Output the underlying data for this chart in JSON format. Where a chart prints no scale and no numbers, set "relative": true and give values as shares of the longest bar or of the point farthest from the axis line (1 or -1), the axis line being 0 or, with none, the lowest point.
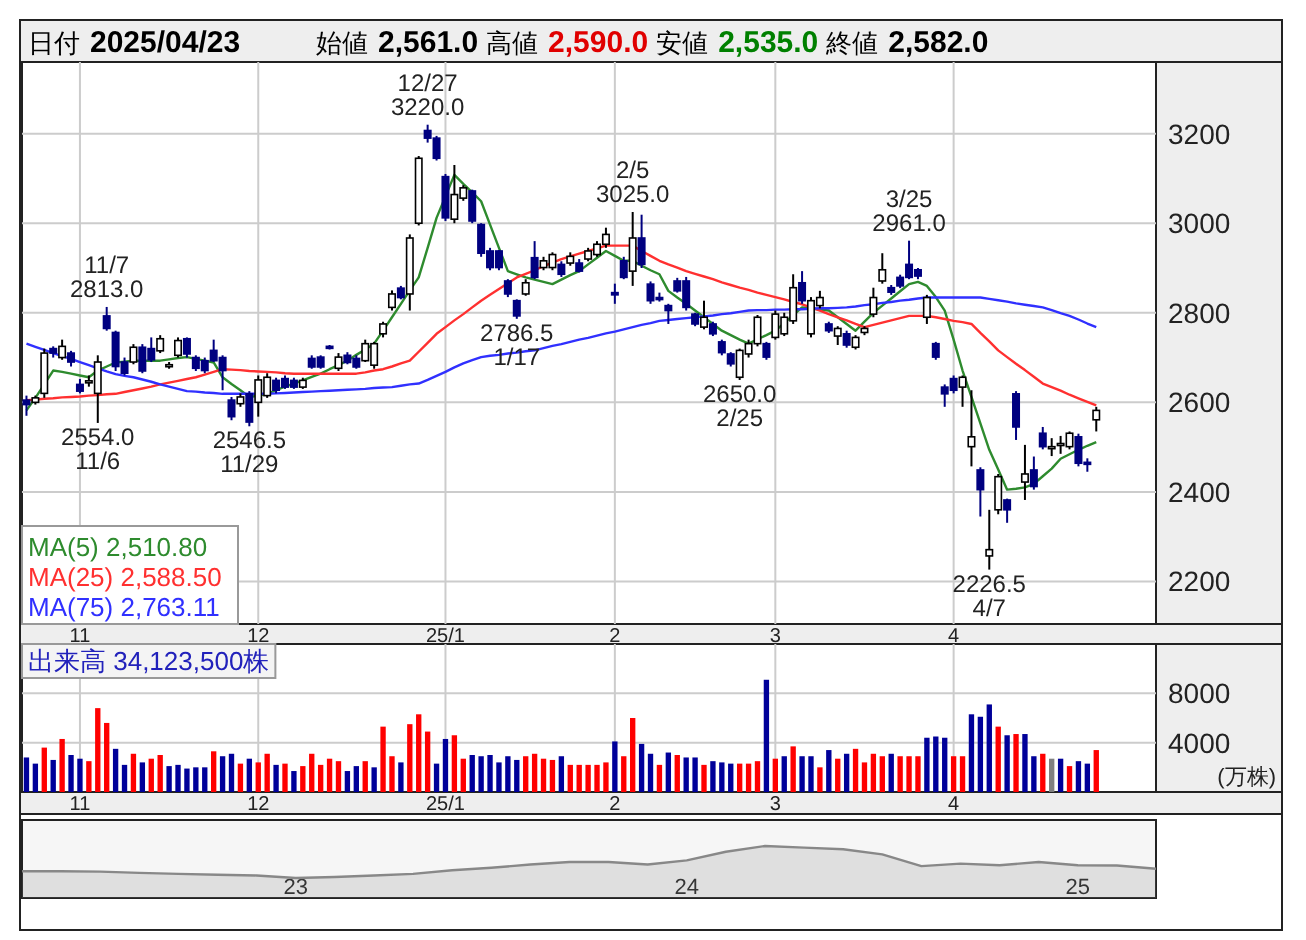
{
  "chart_data": [
    {
      "type": "candlestick",
      "categories": [
        null,
        null,
        null,
        null,
        null,
        null,
        "11",
        null,
        null,
        null,
        null,
        null,
        null,
        null,
        null,
        null,
        null,
        null,
        null,
        null,
        null,
        null,
        null,
        null,
        null,
        null,
        "12",
        null,
        null,
        null,
        null,
        null,
        null,
        null,
        null,
        null,
        null,
        null,
        null,
        null,
        null,
        null,
        null,
        null,
        null,
        null,
        null,
        "25/1",
        null,
        null,
        null,
        null,
        null,
        null,
        null,
        null,
        null,
        null,
        null,
        null,
        null,
        null,
        null,
        null,
        null,
        null,
        "2",
        null,
        null,
        null,
        null,
        null,
        null,
        null,
        null,
        null,
        null,
        null,
        null,
        null,
        null,
        null,
        null,
        null,
        "3",
        null,
        null,
        null,
        null,
        null,
        null,
        null,
        null,
        null,
        null,
        null,
        null,
        null,
        null,
        null,
        null,
        null,
        null,
        null,
        "4",
        null,
        null,
        null,
        null,
        null,
        null,
        null,
        null,
        null,
        null,
        null,
        null,
        null,
        null,
        null,
        null
      ],
      "ohlc": [
        [
          2605,
          2615,
          2570,
          2595
        ],
        [
          2600,
          2615,
          2595,
          2610
        ],
        [
          2620,
          2720,
          2610,
          2710
        ],
        [
          2720,
          2725,
          2700,
          2710
        ],
        [
          2700,
          2740,
          2695,
          2725
        ],
        [
          2710,
          2715,
          2680,
          2690
        ],
        [
          2640,
          2652,
          2620,
          2625
        ],
        [
          2645,
          2660,
          2635,
          2648
        ],
        [
          2620,
          2705,
          2554,
          2690
        ],
        [
          2793,
          2813,
          2760,
          2765
        ],
        [
          2756,
          2760,
          2670,
          2680
        ],
        [
          2690,
          2700,
          2660,
          2665
        ],
        [
          2690,
          2730,
          2685,
          2723
        ],
        [
          2723,
          2730,
          2665,
          2670
        ],
        [
          2720,
          2745,
          2690,
          2695
        ],
        [
          2715,
          2750,
          2710,
          2742
        ],
        [
          2682,
          2690,
          2675,
          2684
        ],
        [
          2705,
          2745,
          2700,
          2738
        ],
        [
          2742,
          2745,
          2700,
          2708
        ],
        [
          2700,
          2705,
          2670,
          2676
        ],
        [
          2693,
          2700,
          2665,
          2671
        ],
        [
          2716,
          2740,
          2690,
          2693
        ],
        [
          2700,
          2705,
          2627,
          2671
        ],
        [
          2605,
          2612,
          2560,
          2568
        ],
        [
          2597,
          2620,
          2590,
          2612
        ],
        [
          2619,
          2625,
          2546.5,
          2556
        ],
        [
          2600,
          2660,
          2568,
          2650
        ],
        [
          2615,
          2665,
          2610,
          2656
        ],
        [
          2649,
          2655,
          2620,
          2627
        ],
        [
          2653,
          2660,
          2630,
          2634
        ],
        [
          2649,
          2655,
          2630,
          2634
        ],
        [
          2634,
          2655,
          2630,
          2649
        ],
        [
          2698,
          2705,
          2675,
          2679
        ],
        [
          2701,
          2705,
          2675,
          2679
        ],
        [
          2725,
          2728,
          2718,
          2721
        ],
        [
          2676,
          2710,
          2670,
          2701
        ],
        [
          2705,
          2712,
          2685,
          2689
        ],
        [
          2698,
          2705,
          2675,
          2679
        ],
        [
          2693,
          2740,
          2690,
          2731
        ],
        [
          2683,
          2735,
          2675,
          2731
        ],
        [
          2753,
          2780,
          2745,
          2775
        ],
        [
          2812,
          2850,
          2805,
          2842
        ],
        [
          2855,
          2860,
          2830,
          2834
        ],
        [
          2842,
          2975,
          2805,
          2967
        ],
        [
          3000,
          3150,
          2995,
          3145
        ],
        [
          3207,
          3220,
          3180,
          3190
        ],
        [
          3190,
          3195,
          3140,
          3145
        ],
        [
          3104,
          3110,
          3005,
          3012
        ],
        [
          3009,
          3130,
          3000,
          3064
        ],
        [
          3056,
          3085,
          3050,
          3079
        ],
        [
          3072,
          3075,
          3000,
          3005
        ],
        [
          2997,
          3000,
          2925,
          2933
        ],
        [
          2938,
          2945,
          2895,
          2901
        ],
        [
          2938,
          2940,
          2895,
          2901
        ],
        [
          2871,
          2875,
          2835,
          2842
        ],
        [
          2827,
          2830,
          2786.5,
          2793
        ],
        [
          2842,
          2875,
          2838,
          2867
        ],
        [
          2923,
          2960,
          2875,
          2879
        ],
        [
          2901,
          2925,
          2895,
          2916
        ],
        [
          2901,
          2935,
          2895,
          2930
        ],
        [
          2908,
          2915,
          2880,
          2886
        ],
        [
          2911,
          2935,
          2905,
          2926
        ],
        [
          2911,
          2920,
          2890,
          2893
        ],
        [
          2920,
          2945,
          2915,
          2938
        ],
        [
          2930,
          2960,
          2925,
          2953
        ],
        [
          2953,
          2990,
          2945,
          2975
        ],
        [
          2845,
          2865,
          2820,
          2840
        ],
        [
          2916,
          2925,
          2875,
          2879
        ],
        [
          2893,
          3025,
          2860,
          2967
        ],
        [
          2967,
          3019,
          2900,
          2908
        ],
        [
          2864,
          2870,
          2820,
          2827
        ],
        [
          2834,
          2845,
          2825,
          2832
        ],
        [
          2816,
          2820,
          2775,
          2805
        ],
        [
          2871,
          2878,
          2845,
          2849
        ],
        [
          2871,
          2880,
          2805,
          2812
        ],
        [
          2797,
          2800,
          2770,
          2775
        ],
        [
          2768,
          2827,
          2763,
          2790
        ],
        [
          2775,
          2780,
          2748,
          2753
        ],
        [
          2735,
          2740,
          2705,
          2711
        ],
        [
          2708,
          2712,
          2680,
          2686
        ],
        [
          2656,
          2720,
          2650,
          2716
        ],
        [
          2708,
          2740,
          2700,
          2731
        ],
        [
          2731,
          2795,
          2725,
          2790
        ],
        [
          2731,
          2735,
          2695,
          2701
        ],
        [
          2745,
          2805,
          2740,
          2797
        ],
        [
          2753,
          2800,
          2748,
          2790
        ],
        [
          2782,
          2886,
          2775,
          2856
        ],
        [
          2867,
          2893,
          2820,
          2827
        ],
        [
          2753,
          2835,
          2745,
          2827
        ],
        [
          2816,
          2849,
          2810,
          2834
        ],
        [
          2775,
          2780,
          2755,
          2760
        ],
        [
          2748,
          2770,
          2728,
          2765
        ],
        [
          2753,
          2760,
          2722,
          2728
        ],
        [
          2723,
          2750,
          2718,
          2745
        ],
        [
          2756,
          2770,
          2750,
          2765
        ],
        [
          2797,
          2856,
          2790,
          2834
        ],
        [
          2871,
          2933,
          2865,
          2896
        ],
        [
          2856,
          2862,
          2840,
          2846
        ],
        [
          2879,
          2885,
          2855,
          2860
        ],
        [
          2908,
          2961,
          2875,
          2879
        ],
        [
          2896,
          2900,
          2875,
          2882
        ],
        [
          2790,
          2840,
          2775,
          2834
        ],
        [
          2731,
          2735,
          2695,
          2701
        ],
        [
          2634,
          2640,
          2590,
          2619
        ],
        [
          2653,
          2660,
          2620,
          2627
        ],
        [
          2634,
          2660,
          2590,
          2656
        ],
        [
          2501,
          2627,
          2457,
          2523
        ],
        [
          2449,
          2455,
          2345,
          2405
        ],
        [
          2257,
          2360,
          2226.5,
          2271
        ],
        [
          2360,
          2440,
          2350,
          2434
        ],
        [
          2382,
          2385,
          2331,
          2360
        ],
        [
          2619,
          2625,
          2516,
          2545
        ],
        [
          2422,
          2505,
          2382,
          2440
        ],
        [
          2449,
          2479,
          2405,
          2412
        ],
        [
          2531,
          2545,
          2495,
          2501
        ],
        [
          2499,
          2520,
          2480,
          2501
        ],
        [
          2506,
          2525,
          2485,
          2508
        ],
        [
          2501,
          2535,
          2495,
          2531
        ],
        [
          2523,
          2530,
          2457,
          2464
        ],
        [
          2466,
          2475,
          2445,
          2464
        ],
        [
          2561,
          2590,
          2535,
          2582
        ]
      ],
      "series": [
        {
          "type": "line",
          "name": "MA(5)  2,510.80",
          "color": "#2e8b2e",
          "values": [
            2582,
            2610,
            2640,
            2671,
            2668,
            2664,
            2660,
            2656,
            2671,
            2680,
            2689,
            2691,
            2693,
            2693,
            2693,
            2693,
            2696,
            2699,
            2701,
            2697,
            2693,
            2689,
            2656,
            2641,
            2627,
            2612,
            2615,
            2619,
            2627,
            2635,
            2642,
            2649,
            2657,
            2664,
            2674,
            2683,
            2693,
            2706,
            2718,
            2731,
            2760,
            2790,
            2820,
            2850,
            2879,
            2945,
            3012,
            3060,
            3108,
            3088,
            3069,
            3049,
            2997,
            2945,
            2893,
            2886,
            2879,
            2874,
            2869,
            2864,
            2874,
            2884,
            2893,
            2908,
            2923,
            2938,
            2927,
            2916,
            2916,
            2905,
            2895,
            2886,
            2849,
            2834,
            2820,
            2805,
            2790,
            2775,
            2760,
            2750,
            2740,
            2731,
            2741,
            2750,
            2760,
            2777,
            2795,
            2812,
            2810,
            2807,
            2805,
            2790,
            2775,
            2760,
            2780,
            2800,
            2816,
            2832,
            2848,
            2864,
            2869,
            2860,
            2835,
            2805,
            2740,
            2671,
            2612,
            2553,
            2494,
            2450,
            2405,
            2407,
            2410,
            2418,
            2435,
            2452,
            2474,
            2484,
            2494,
            2503,
            2511
          ]
        },
        {
          "type": "line",
          "name": "MA(25)  2,588.50",
          "color": "#ff3030",
          "values": [
            2605,
            2606,
            2608,
            2609,
            2611,
            2612,
            2613,
            2615,
            2616,
            2618,
            2619,
            2623,
            2627,
            2631,
            2635,
            2640,
            2644,
            2648,
            2652,
            2656,
            2662,
            2668,
            2674,
            2673,
            2672,
            2670,
            2669,
            2668,
            2667,
            2665,
            2664,
            2664,
            2664,
            2664,
            2664,
            2664,
            2664,
            2664,
            2667,
            2671,
            2674,
            2680,
            2687,
            2693,
            2713,
            2733,
            2753,
            2768,
            2783,
            2797,
            2812,
            2827,
            2840,
            2853,
            2866,
            2879,
            2887,
            2895,
            2904,
            2912,
            2920,
            2926,
            2932,
            2938,
            2944,
            2950,
            2950,
            2950,
            2950,
            2938,
            2927,
            2916,
            2908,
            2901,
            2893,
            2887,
            2881,
            2875,
            2868,
            2862,
            2856,
            2851,
            2845,
            2840,
            2835,
            2830,
            2824,
            2819,
            2812,
            2805,
            2797,
            2790,
            2783,
            2775,
            2768,
            2773,
            2778,
            2783,
            2788,
            2793,
            2793,
            2793,
            2790,
            2786,
            2782,
            2779,
            2775,
            2755,
            2736,
            2716,
            2701,
            2686,
            2672,
            2657,
            2642,
            2634,
            2626,
            2617,
            2609,
            2601,
            2593
          ]
        },
        {
          "type": "line",
          "name": "MA(75)  2,763.11",
          "color": "#3030ff",
          "values": [
            2731,
            2724,
            2717,
            2710,
            2703,
            2697,
            2690,
            2683,
            2676,
            2669,
            2663,
            2659,
            2656,
            2651,
            2646,
            2640,
            2635,
            2630,
            2625,
            2624,
            2622,
            2621,
            2619,
            2619,
            2619,
            2619,
            2619,
            2619,
            2620,
            2621,
            2622,
            2623,
            2624,
            2625,
            2626,
            2627,
            2628,
            2629,
            2630,
            2632,
            2633,
            2634,
            2637,
            2640,
            2642,
            2650,
            2659,
            2668,
            2678,
            2687,
            2694,
            2701,
            2704,
            2706,
            2709,
            2711,
            2714,
            2716,
            2721,
            2726,
            2730,
            2735,
            2740,
            2744,
            2749,
            2754,
            2758,
            2763,
            2768,
            2773,
            2777,
            2782,
            2784,
            2786,
            2788,
            2790,
            2792,
            2794,
            2797,
            2799,
            2802,
            2805,
            2806,
            2806,
            2807,
            2807,
            2808,
            2808,
            2809,
            2810,
            2810,
            2811,
            2812,
            2814,
            2817,
            2819,
            2822,
            2824,
            2827,
            2829,
            2832,
            2834,
            2834,
            2834,
            2834,
            2834,
            2834,
            2834,
            2831,
            2828,
            2825,
            2821,
            2818,
            2815,
            2812,
            2806,
            2799,
            2793,
            2785,
            2776,
            2768
          ]
        }
      ],
      "ylim": [
        2105,
        3360
      ],
      "yticks": [
        2200,
        2400,
        2600,
        2800,
        3000,
        3200
      ],
      "grid": true,
      "legend": "bottom left",
      "annotations": [
        "日付 2025/04/23",
        "始値 2,561.0",
        "高値 2,590.0",
        "安値 2,535.0",
        "終値 2,582.0",
        {
          "text": "11/7\n2813.0",
          "y": 2813
        },
        {
          "text": "2554.0\n11/6",
          "y": 2554
        },
        {
          "text": "2546.5\n11/29",
          "y": 2546.5
        },
        {
          "text": "12/27\n3220.0",
          "y": 3220
        },
        {
          "text": "2786.5\n1/17",
          "y": 2786.5
        },
        {
          "text": "2/5\n3025.0",
          "y": 3025
        },
        {
          "text": "2650.0\n2/25",
          "y": 2650
        },
        {
          "text": "3/25\n2961.0",
          "y": 2961
        },
        {
          "text": "2226.5\n4/7",
          "y": 2226.5
        }
      ]
    },
    {
      "type": "bar",
      "title": "出来高  34,123,500株",
      "ylabel": "(万株)",
      "categories": [
        null,
        null,
        null,
        null,
        null,
        null,
        "11",
        null,
        null,
        null,
        null,
        null,
        null,
        null,
        null,
        null,
        null,
        null,
        null,
        null,
        null,
        null,
        null,
        null,
        null,
        null,
        "12",
        null,
        null,
        null,
        null,
        null,
        null,
        null,
        null,
        null,
        null,
        null,
        null,
        null,
        null,
        null,
        null,
        null,
        null,
        null,
        null,
        "25/1",
        null,
        null,
        null,
        null,
        null,
        null,
        null,
        null,
        null,
        null,
        null,
        null,
        null,
        null,
        null,
        null,
        null,
        null,
        "2",
        null,
        null,
        null,
        null,
        null,
        null,
        null,
        null,
        null,
        null,
        null,
        null,
        null,
        null,
        null,
        null,
        null,
        "3",
        null,
        null,
        null,
        null,
        null,
        null,
        null,
        null,
        null,
        null,
        null,
        null,
        null,
        null,
        null,
        null,
        null,
        null,
        null,
        "4",
        null,
        null,
        null,
        null,
        null,
        null,
        null,
        null,
        null,
        null,
        null,
        null,
        null,
        null,
        null,
        null
      ],
      "values": [
        2800,
        2300,
        3600,
        2600,
        4300,
        3000,
        2700,
        2500,
        6800,
        5600,
        3500,
        2200,
        3100,
        2400,
        2700,
        3000,
        2100,
        2200,
        1900,
        2000,
        2000,
        3300,
        2900,
        3100,
        2300,
        2700,
        2400,
        3100,
        2200,
        2300,
        1700,
        2100,
        3100,
        2200,
        2700,
        2500,
        1700,
        2100,
        2500,
        2000,
        5300,
        2900,
        2400,
        5500,
        6300,
        4900,
        2300,
        4300,
        4600,
        2700,
        3000,
        2900,
        3000,
        2400,
        2900,
        2600,
        2900,
        3100,
        2700,
        2600,
        2900,
        2200,
        2200,
        2200,
        2200,
        2400,
        4100,
        2900,
        6000,
        3900,
        3100,
        2200,
        3200,
        3000,
        2800,
        2800,
        2200,
        2500,
        2400,
        2300,
        2300,
        2300,
        2500,
        9100,
        2700,
        2900,
        3700,
        2900,
        2900,
        2000,
        3400,
        2700,
        3100,
        3500,
        2400,
        3100,
        2900,
        3100,
        2900,
        2900,
        2900,
        4400,
        4500,
        4400,
        2900,
        2900,
        6300,
        6100,
        7100,
        5300,
        4600,
        4700,
        4700,
        2900,
        3100,
        2700,
        2700,
        2100,
        2500,
        2300,
        3400
      ],
      "colors": [
        "#000099",
        "#000099",
        "#ff0000",
        "#000099",
        "#ff0000",
        "#000099",
        "#000099",
        "#ff0000",
        "#ff0000",
        "#ff0000",
        "#000099",
        "#000099",
        "#ff0000",
        "#000099",
        "#ff0000",
        "#ff0000",
        "#000099",
        "#000099",
        "#000099",
        "#000099",
        "#000099",
        "#ff0000",
        "#000099",
        "#000099",
        "#ff0000",
        "#000099",
        "#ff0000",
        "#ff0000",
        "#000099",
        "#ff0000",
        "#000099",
        "#ff0000",
        "#ff0000",
        "#ff0000",
        "#ff0000",
        "#ff0000",
        "#000099",
        "#000099",
        "#ff0000",
        "#000099",
        "#ff0000",
        "#ff0000",
        "#000099",
        "#ff0000",
        "#ff0000",
        "#ff0000",
        "#000099",
        "#000099",
        "#ff0000",
        "#ff0000",
        "#000099",
        "#000099",
        "#000099",
        "#000099",
        "#000099",
        "#000099",
        "#ff0000",
        "#ff0000",
        "#ff0000",
        "#ff0000",
        "#000099",
        "#ff0000",
        "#ff0000",
        "#ff0000",
        "#ff0000",
        "#ff0000",
        "#000099",
        "#ff0000",
        "#ff0000",
        "#000099",
        "#000099",
        "#ff0000",
        "#000099",
        "#ff0000",
        "#000099",
        "#000099",
        "#ff0000",
        "#000099",
        "#000099",
        "#000099",
        "#ff0000",
        "#ff0000",
        "#ff0000",
        "#000099",
        "#ff0000",
        "#000099",
        "#ff0000",
        "#000099",
        "#000099",
        "#ff0000",
        "#000099",
        "#ff0000",
        "#000099",
        "#ff0000",
        "#ff0000",
        "#ff0000",
        "#ff0000",
        "#000099",
        "#ff0000",
        "#ff0000",
        "#ff0000",
        "#000099",
        "#000099",
        "#000099",
        "#ff0000",
        "#ff0000",
        "#000099",
        "#000099",
        "#000099",
        "#ff0000",
        "#000099",
        "#ff0000",
        "#000099",
        "#000099",
        "#ff0000",
        "#808080",
        "#000099",
        "#ff0000",
        "#000099",
        "#000099",
        "#ff0000"
      ],
      "ylim": [
        0,
        12000
      ],
      "yticks": [
        4000,
        8000
      ],
      "grid": true
    },
    {
      "type": "area",
      "relative": true,
      "color": "#888888",
      "categories": [
        null,
        null,
        null,
        null,
        null,
        null,
        null,
        "23",
        null,
        null,
        null,
        null,
        null,
        null,
        null,
        null,
        null,
        "24",
        null,
        null,
        null,
        null,
        null,
        null,
        null,
        null,
        null,
        "25",
        null,
        null
      ],
      "values": [
        0.21,
        0.21,
        0.2,
        0.16,
        0.13,
        0.1,
        0.08,
        0,
        0.03,
        0.08,
        0.13,
        0.24,
        0.32,
        0.42,
        0.5,
        0.5,
        0.42,
        0.55,
        0.82,
        1,
        0.95,
        0.9,
        0.74,
        0.37,
        0.45,
        0.4,
        0.5,
        0.4,
        0.39,
        0.29
      ]
    }
  ]
}
